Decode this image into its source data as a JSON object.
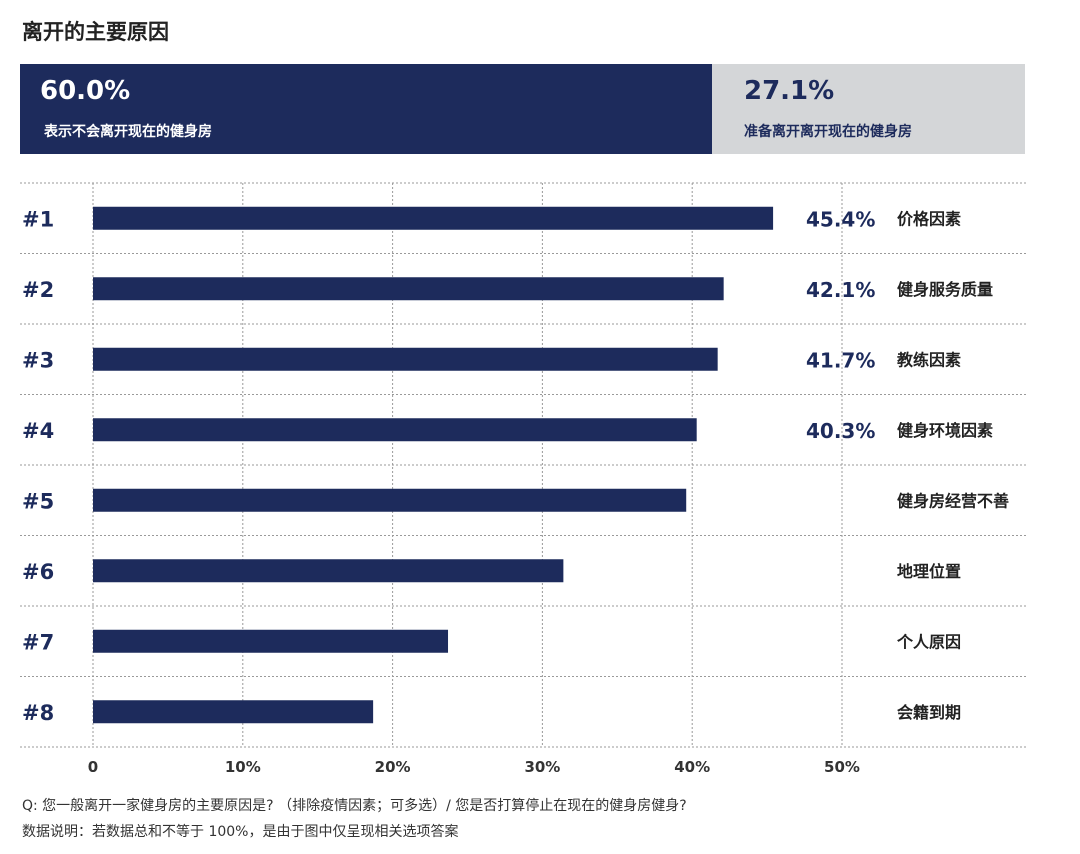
{
  "header": {
    "title": "离开的主要原因"
  },
  "split": {
    "stay": {
      "value": "60.0%",
      "label": "表示不会离开现在的健身房",
      "fraction": 0.6888
    },
    "leave": {
      "value": "27.1%",
      "label": "准备离开离开现在的健身房"
    }
  },
  "colors": {
    "bar": "#1d2b5c",
    "light": "#d4d6d8",
    "grid": "#9a9a9a"
  },
  "chart_data": {
    "type": "bar",
    "orientation": "horizontal",
    "categories": [
      "价格因素",
      "健身服务质量",
      "教练因素",
      "健身环境因素",
      "健身房经营不善",
      "地理位置",
      "个人原因",
      "会籍到期"
    ],
    "ranks": [
      "#1",
      "#2",
      "#3",
      "#4",
      "#5",
      "#6",
      "#7",
      "#8"
    ],
    "values": [
      45.4,
      42.1,
      41.7,
      40.3,
      39.6,
      31.4,
      23.7,
      18.7
    ],
    "value_labels": [
      "45.4%",
      "42.1%",
      "41.7%",
      "40.3%",
      "",
      "",
      "",
      ""
    ],
    "xticks": [
      "0",
      "10%",
      "20%",
      "30%",
      "40%",
      "50%"
    ],
    "xtick_values": [
      0,
      10,
      20,
      30,
      40,
      50
    ],
    "xlim": [
      0,
      50
    ],
    "grid": true
  },
  "footer": {
    "question": "Q: 您一般离开一家健身房的主要原因是? （排除疫情因素；可多选）/ 您是否打算停止在现在的健身房健身?",
    "note": "数据说明：若数据总和不等于 100%，是由于图中仅呈现相关选项答案"
  }
}
